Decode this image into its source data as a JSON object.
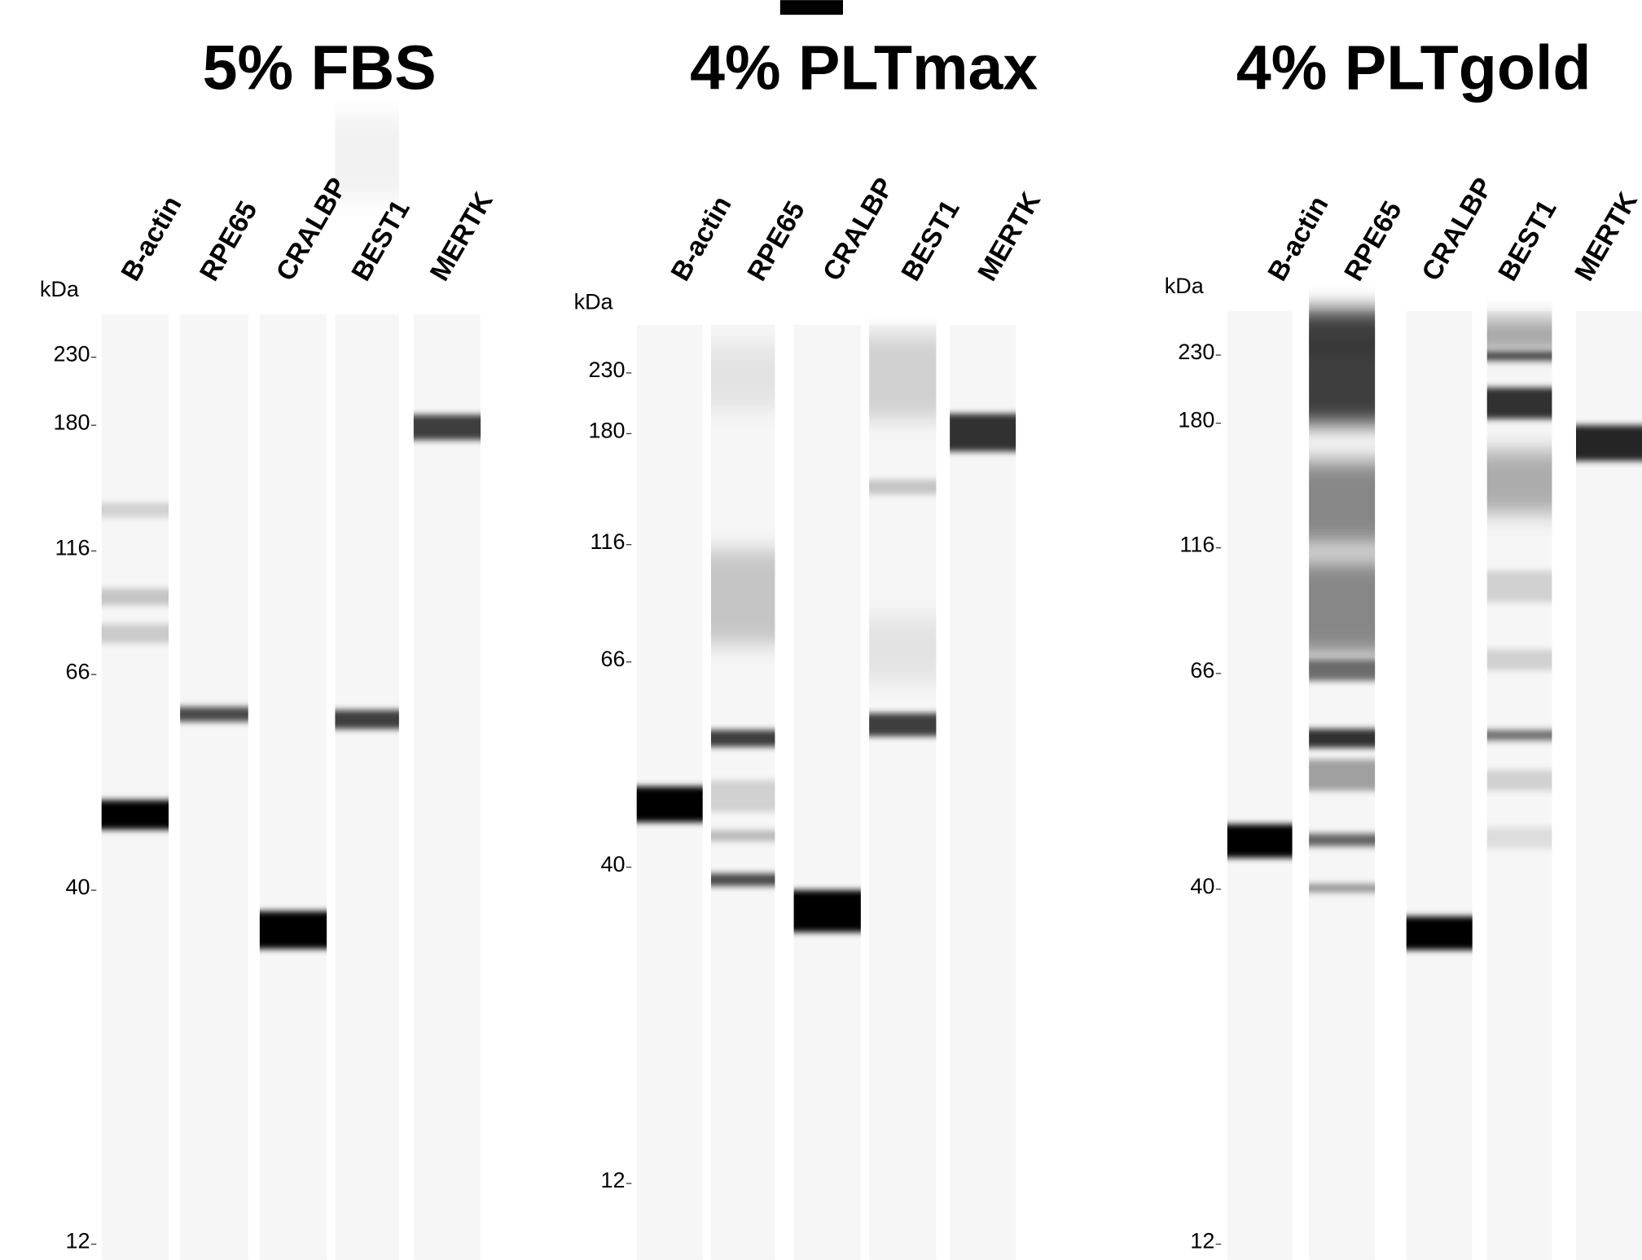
{
  "panels": [
    {
      "title": "5% FBS",
      "unit": "kDa",
      "lanes": [
        "B-actin",
        "RPE65",
        "CRALBP",
        "BEST1",
        "MERTK"
      ],
      "ladder": [
        "230",
        "180",
        "116",
        "66",
        "40",
        "12"
      ]
    },
    {
      "title": "4% PLTmax",
      "unit": "kDa",
      "lanes": [
        "B-actin",
        "RPE65",
        "CRALBP",
        "BEST1",
        "MERTK"
      ],
      "ladder": [
        "230",
        "180",
        "116",
        "66",
        "40",
        "12"
      ]
    },
    {
      "title": "4% PLTgold",
      "unit": "kDa",
      "lanes": [
        "B-actin",
        "RPE65",
        "CRALBP",
        "BEST1",
        "MERTK"
      ],
      "ladder": [
        "230",
        "180",
        "116",
        "66",
        "40",
        "12"
      ]
    }
  ]
}
